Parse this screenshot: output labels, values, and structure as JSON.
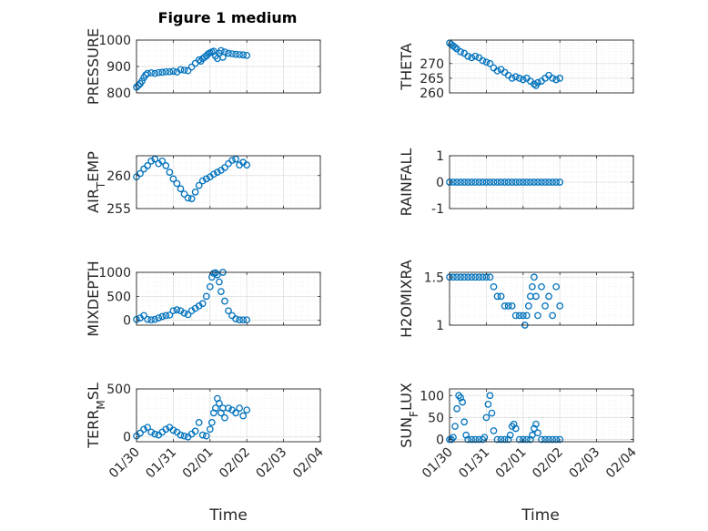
{
  "figure": {
    "title": "Figure 1 medium",
    "xlabel": "Time"
  },
  "colors": {
    "marker": "#0072BD",
    "axis": "#262626",
    "grid_major": "#dfdfdf",
    "grid_minor": "#ececec"
  },
  "chart_data": [
    {
      "type": "scatter",
      "marker": "circle",
      "ylabel": "PRESSURE",
      "xlim": [
        "01/30",
        "02/04"
      ],
      "ylim": [
        800,
        1000
      ],
      "yticks": [
        800,
        900,
        1000
      ],
      "xticks": [
        "01/30",
        "01/31",
        "02/01",
        "02/02",
        "02/03",
        "02/04"
      ],
      "grid": true,
      "show_xticklabels": false,
      "x_day": [
        0.0,
        0.05,
        0.1,
        0.15,
        0.2,
        0.25,
        0.3,
        0.4,
        0.5,
        0.6,
        0.7,
        0.8,
        0.9,
        1.0,
        1.1,
        1.2,
        1.3,
        1.4,
        1.5,
        1.6,
        1.7,
        1.75,
        1.8,
        1.85,
        1.9,
        1.95,
        2.0,
        2.05,
        2.1,
        2.15,
        2.2,
        2.25,
        2.3,
        2.35,
        2.4,
        2.5,
        2.6,
        2.7,
        2.8,
        2.9,
        3.0
      ],
      "y": [
        822,
        828,
        835,
        845,
        858,
        868,
        874,
        876,
        874,
        877,
        878,
        880,
        880,
        882,
        879,
        888,
        886,
        884,
        898,
        912,
        925,
        920,
        930,
        935,
        940,
        948,
        952,
        955,
        958,
        940,
        930,
        950,
        960,
        935,
        955,
        950,
        948,
        946,
        945,
        944,
        942
      ]
    },
    {
      "type": "scatter",
      "marker": "circle",
      "ylabel": "THETA",
      "xlim": [
        "01/30",
        "02/04"
      ],
      "ylim": [
        260,
        278
      ],
      "yticks": [
        260,
        265,
        270
      ],
      "xticks": [
        "01/30",
        "01/31",
        "02/01",
        "02/02",
        "02/03",
        "02/04"
      ],
      "grid": true,
      "show_xticklabels": false,
      "x_day": [
        0.0,
        0.05,
        0.1,
        0.15,
        0.2,
        0.3,
        0.4,
        0.5,
        0.6,
        0.7,
        0.8,
        0.9,
        1.0,
        1.1,
        1.2,
        1.3,
        1.4,
        1.5,
        1.6,
        1.7,
        1.8,
        1.9,
        2.0,
        2.1,
        2.2,
        2.3,
        2.35,
        2.4,
        2.5,
        2.6,
        2.7,
        2.8,
        2.9,
        3.0
      ],
      "y": [
        277,
        276.5,
        276,
        275.5,
        275,
        274,
        273.5,
        272.5,
        272,
        272.5,
        272,
        271,
        270.5,
        270,
        268.5,
        267.5,
        268,
        267,
        266,
        265,
        265.5,
        265,
        264.5,
        265,
        264,
        263,
        262.5,
        263.5,
        264,
        265,
        266,
        265,
        264.5,
        265
      ]
    },
    {
      "type": "scatter",
      "marker": "circle",
      "ylabel": "AIR_TEMP",
      "xlim": [
        "01/30",
        "02/04"
      ],
      "ylim": [
        255,
        263
      ],
      "yticks": [
        255,
        260
      ],
      "xticks": [
        "01/30",
        "01/31",
        "02/01",
        "02/02",
        "02/03",
        "02/04"
      ],
      "grid": true,
      "show_xticklabels": false,
      "x_day": [
        0.0,
        0.1,
        0.2,
        0.3,
        0.4,
        0.5,
        0.6,
        0.7,
        0.8,
        0.9,
        1.0,
        1.1,
        1.2,
        1.3,
        1.4,
        1.5,
        1.6,
        1.7,
        1.8,
        1.9,
        2.0,
        2.1,
        2.2,
        2.3,
        2.4,
        2.5,
        2.6,
        2.7,
        2.8,
        2.9,
        3.0
      ],
      "y": [
        259.8,
        260.3,
        261,
        261.5,
        262.2,
        262.5,
        261.8,
        262.2,
        261.5,
        260.5,
        259.5,
        258.8,
        258,
        257.2,
        256.6,
        256.5,
        257.5,
        258.5,
        259.2,
        259.5,
        259.8,
        260.2,
        260.5,
        260.8,
        261.2,
        261.8,
        262.3,
        262.5,
        261.6,
        262,
        261.6
      ]
    },
    {
      "type": "scatter",
      "marker": "circle",
      "ylabel": "RAINFALL",
      "xlim": [
        "01/30",
        "02/04"
      ],
      "ylim": [
        -1,
        1
      ],
      "yticks": [
        -1,
        0,
        1
      ],
      "xticks": [
        "01/30",
        "01/31",
        "02/01",
        "02/02",
        "02/03",
        "02/04"
      ],
      "grid": true,
      "show_xticklabels": false,
      "x_day": [
        0.0,
        0.1,
        0.2,
        0.3,
        0.4,
        0.5,
        0.6,
        0.7,
        0.8,
        0.9,
        1.0,
        1.1,
        1.2,
        1.3,
        1.4,
        1.5,
        1.6,
        1.7,
        1.8,
        1.9,
        2.0,
        2.1,
        2.2,
        2.3,
        2.4,
        2.5,
        2.6,
        2.7,
        2.8,
        2.9,
        3.0
      ],
      "y": [
        0,
        0,
        0,
        0,
        0,
        0,
        0,
        0,
        0,
        0,
        0,
        0,
        0,
        0,
        0,
        0,
        0,
        0,
        0,
        0,
        0,
        0,
        0,
        0,
        0,
        0,
        0,
        0,
        0,
        0,
        0
      ]
    },
    {
      "type": "scatter",
      "marker": "circle",
      "ylabel": "MIXDEPTH",
      "xlim": [
        "01/30",
        "02/04"
      ],
      "ylim": [
        -100,
        1000
      ],
      "yticks": [
        0,
        500,
        1000
      ],
      "xticks": [
        "01/30",
        "01/31",
        "02/01",
        "02/02",
        "02/03",
        "02/04"
      ],
      "grid": true,
      "show_xticklabels": false,
      "x_day": [
        0.0,
        0.1,
        0.2,
        0.3,
        0.4,
        0.5,
        0.6,
        0.7,
        0.8,
        0.9,
        1.0,
        1.1,
        1.2,
        1.3,
        1.4,
        1.5,
        1.6,
        1.7,
        1.8,
        1.9,
        2.0,
        2.05,
        2.1,
        2.15,
        2.2,
        2.25,
        2.3,
        2.35,
        2.4,
        2.5,
        2.6,
        2.7,
        2.8,
        2.9,
        3.0
      ],
      "y": [
        20,
        50,
        100,
        20,
        10,
        20,
        50,
        80,
        100,
        110,
        200,
        220,
        200,
        150,
        120,
        200,
        250,
        300,
        350,
        500,
        700,
        900,
        980,
        990,
        950,
        800,
        600,
        1000,
        400,
        200,
        100,
        30,
        10,
        10,
        10
      ]
    },
    {
      "type": "scatter",
      "marker": "circle",
      "ylabel": "H2OMIXRA",
      "xlim": [
        "01/30",
        "02/04"
      ],
      "ylim": [
        1,
        1.55
      ],
      "yticks": [
        1,
        1.5
      ],
      "xticks": [
        "01/30",
        "01/31",
        "02/01",
        "02/02",
        "02/03",
        "02/04"
      ],
      "grid": true,
      "show_xticklabels": false,
      "x_day": [
        0.0,
        0.1,
        0.2,
        0.3,
        0.4,
        0.5,
        0.6,
        0.7,
        0.8,
        0.9,
        1.0,
        1.1,
        1.2,
        1.3,
        1.4,
        1.5,
        1.6,
        1.7,
        1.8,
        1.9,
        2.0,
        2.05,
        2.1,
        2.15,
        2.2,
        2.25,
        2.3,
        2.35,
        2.4,
        2.5,
        2.6,
        2.7,
        2.8,
        2.9,
        3.0
      ],
      "y": [
        1.5,
        1.5,
        1.5,
        1.5,
        1.5,
        1.5,
        1.5,
        1.5,
        1.5,
        1.5,
        1.5,
        1.5,
        1.4,
        1.3,
        1.3,
        1.2,
        1.2,
        1.2,
        1.1,
        1.1,
        1.1,
        1.0,
        1.1,
        1.2,
        1.3,
        1.4,
        1.5,
        1.3,
        1.1,
        1.4,
        1.2,
        1.3,
        1.1,
        1.4,
        1.2
      ]
    },
    {
      "type": "scatter",
      "marker": "circle",
      "ylabel": "TERR_MSL",
      "xlim": [
        "01/30",
        "02/04"
      ],
      "ylim": [
        -50,
        500
      ],
      "yticks": [
        0,
        500
      ],
      "xticks": [
        "01/30",
        "01/31",
        "02/01",
        "02/02",
        "02/03",
        "02/04"
      ],
      "grid": true,
      "show_xticklabels": true,
      "x_day": [
        0.0,
        0.1,
        0.2,
        0.3,
        0.4,
        0.5,
        0.6,
        0.7,
        0.8,
        0.9,
        1.0,
        1.1,
        1.2,
        1.3,
        1.4,
        1.5,
        1.6,
        1.7,
        1.8,
        1.9,
        2.0,
        2.05,
        2.1,
        2.15,
        2.2,
        2.25,
        2.3,
        2.35,
        2.4,
        2.5,
        2.6,
        2.7,
        2.8,
        2.9,
        3.0
      ],
      "y": [
        10,
        40,
        80,
        100,
        50,
        30,
        20,
        50,
        80,
        100,
        70,
        50,
        20,
        10,
        0,
        30,
        60,
        150,
        20,
        10,
        80,
        150,
        250,
        300,
        400,
        350,
        250,
        300,
        200,
        300,
        280,
        250,
        300,
        220,
        280
      ]
    },
    {
      "type": "scatter",
      "marker": "circle",
      "ylabel": "SUN_FLUX",
      "xlim": [
        "01/30",
        "02/04"
      ],
      "ylim": [
        -5,
        115
      ],
      "yticks": [
        0,
        50,
        100
      ],
      "xticks": [
        "01/30",
        "01/31",
        "02/01",
        "02/02",
        "02/03",
        "02/04"
      ],
      "grid": true,
      "show_xticklabels": true,
      "x_day": [
        0.0,
        0.05,
        0.1,
        0.15,
        0.2,
        0.25,
        0.3,
        0.35,
        0.4,
        0.45,
        0.5,
        0.6,
        0.7,
        0.8,
        0.9,
        0.95,
        1.0,
        1.05,
        1.1,
        1.15,
        1.2,
        1.3,
        1.4,
        1.5,
        1.6,
        1.65,
        1.7,
        1.75,
        1.8,
        1.9,
        2.0,
        2.1,
        2.2,
        2.25,
        2.3,
        2.35,
        2.4,
        2.5,
        2.6,
        2.7,
        2.8,
        2.9,
        3.0
      ],
      "y": [
        0,
        0,
        5,
        30,
        70,
        100,
        95,
        85,
        40,
        10,
        0,
        0,
        0,
        0,
        0,
        5,
        50,
        80,
        100,
        60,
        20,
        0,
        0,
        0,
        0,
        10,
        30,
        35,
        25,
        0,
        0,
        0,
        0,
        10,
        25,
        35,
        15,
        0,
        0,
        0,
        0,
        0,
        0
      ]
    }
  ]
}
